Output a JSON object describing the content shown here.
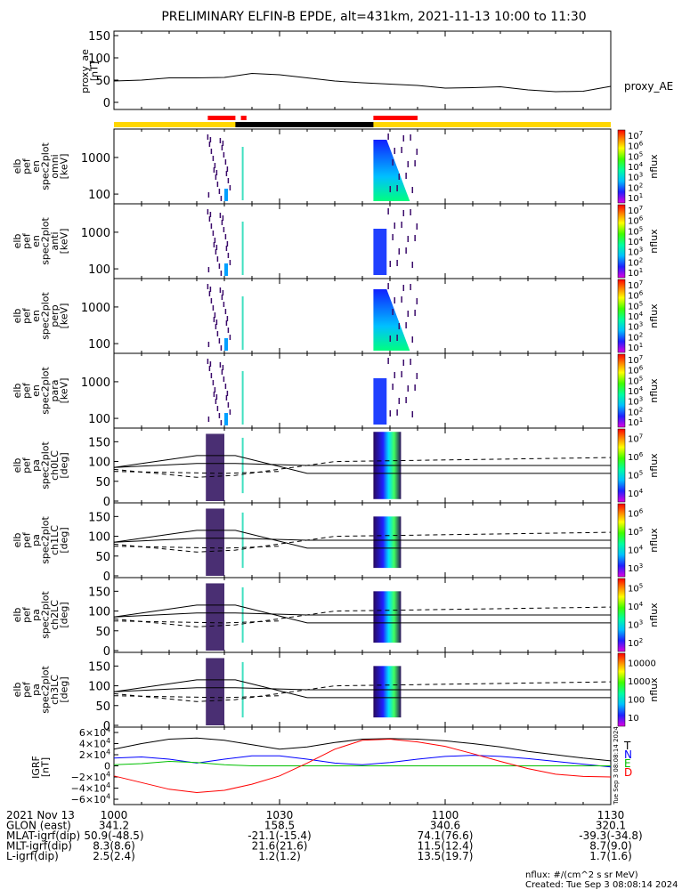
{
  "title": "PRELIMINARY ELFIN-B EPDE, alt=431km, 2021-11-13 10:00 to 11:30",
  "colors": {
    "bar_yellow": "#ffd700",
    "bar_black": "#000000",
    "bar_red": "#ff0000",
    "line_black": "#000000",
    "line_blue": "#0000ff",
    "line_green": "#00c000",
    "line_red": "#ff0000"
  },
  "status_bar": {
    "red_segments": [
      [
        "10:17",
        "10:22"
      ],
      [
        "10:23",
        "10:24"
      ],
      [
        "10:47",
        "10:55"
      ]
    ],
    "black_segments": [
      [
        "10:22",
        "10:47"
      ]
    ]
  },
  "proxy_ae": {
    "ylabel": "proxy_ae [nT]",
    "legend": "proxy_AE",
    "yticks": [
      "150",
      "100",
      "50",
      "0"
    ]
  },
  "spec_panels": [
    {
      "id": "omni",
      "ylabel_lines": [
        "elb",
        "pef",
        "en",
        "spec2plot",
        "omni",
        "[keV]"
      ],
      "yticks": [
        "1000",
        "100"
      ],
      "ztitle": "nflux",
      "zticks": [
        "10^7",
        "10^6",
        "10^5",
        "10^4",
        "10^3",
        "10^2",
        "10^1"
      ]
    },
    {
      "id": "anti",
      "ylabel_lines": [
        "elb",
        "pef",
        "en",
        "spec2plot",
        "anti",
        "[keV]"
      ],
      "yticks": [
        "1000",
        "100"
      ],
      "ztitle": "nflux",
      "zticks": [
        "10^7",
        "10^6",
        "10^5",
        "10^4",
        "10^3",
        "10^2",
        "10^1"
      ]
    },
    {
      "id": "perp",
      "ylabel_lines": [
        "elb",
        "pef",
        "en",
        "spec2plot",
        "perp",
        "[keV]"
      ],
      "yticks": [
        "1000",
        "100"
      ],
      "ztitle": "nflux",
      "zticks": [
        "10^7",
        "10^6",
        "10^5",
        "10^4",
        "10^3",
        "10^2",
        "10^1"
      ]
    },
    {
      "id": "para",
      "ylabel_lines": [
        "elb",
        "pef",
        "en",
        "spec2plot",
        "para",
        "[keV]"
      ],
      "yticks": [
        "1000",
        "100"
      ],
      "ztitle": "nflux",
      "zticks": [
        "10^7",
        "10^6",
        "10^5",
        "10^4",
        "10^3",
        "10^2",
        "10^1"
      ]
    }
  ],
  "pa_panels": [
    {
      "id": "ch0LC",
      "ylabel_lines": [
        "elb",
        "pef",
        "pa",
        "spec2plot",
        "ch0LC",
        "[deg]"
      ],
      "yticks": [
        "150",
        "100",
        "50",
        "0"
      ],
      "ztitle": "nflux",
      "zticks": [
        "10^7",
        "10^6",
        "10^5",
        "10^4"
      ]
    },
    {
      "id": "ch1LC",
      "ylabel_lines": [
        "elb",
        "pef",
        "pa",
        "spec2plot",
        "ch1LC",
        "[deg]"
      ],
      "yticks": [
        "150",
        "100",
        "50",
        "0"
      ],
      "ztitle": "nflux",
      "zticks": [
        "10^6",
        "10^5",
        "10^4",
        "10^3"
      ]
    },
    {
      "id": "ch2LC",
      "ylabel_lines": [
        "elb",
        "pef",
        "pa",
        "spec2plot",
        "ch2LC",
        "[deg]"
      ],
      "yticks": [
        "150",
        "100",
        "50",
        "0"
      ],
      "ztitle": "nflux",
      "zticks": [
        "10^5",
        "10^4",
        "10^3",
        "10^2"
      ]
    },
    {
      "id": "ch3LC",
      "ylabel_lines": [
        "elb",
        "pef",
        "pa",
        "spec2plot",
        "ch3LC",
        "[deg]"
      ],
      "yticks": [
        "150",
        "100",
        "50",
        "0"
      ],
      "ztitle": "nflux",
      "zticks": [
        "10000",
        "1000",
        "100",
        "10"
      ]
    }
  ],
  "igrf": {
    "ylabel": "IGRF [nT]",
    "yticks": [
      "6×10^4",
      "4×10^4",
      "2×10^4",
      "0",
      "−2×10^4",
      "−4×10^4",
      "−6×10^4"
    ],
    "legend": [
      "T",
      "N",
      "E",
      "D"
    ],
    "stamp": "Tue Sep  3 08:08:14 2024"
  },
  "time_axis": {
    "tick_labels": [
      "1000",
      "1030",
      "1100",
      "1130"
    ]
  },
  "annotation_rows": [
    {
      "label": "2021 Nov 13",
      "values": [
        "1000",
        "1030",
        "1100",
        "1130"
      ]
    },
    {
      "label": "GLON (east)",
      "values": [
        "341.2",
        "158.5",
        "340.6",
        "320.1"
      ]
    },
    {
      "label": "MLAT-igrf(dip)",
      "values": [
        "50.9(-48.5)",
        "-21.1(-15.4)",
        "74.1(76.6)",
        "-39.3(-34.8)"
      ]
    },
    {
      "label": "MLT-igrf(dip)",
      "values": [
        "8.3(8.6)",
        "21.6(21.6)",
        "11.5(12.4)",
        "8.7(9.0)"
      ]
    },
    {
      "label": "L-igrf(dip)",
      "values": [
        "2.5(2.4)",
        "1.2(1.2)",
        "13.5(19.7)",
        "1.7(1.6)"
      ]
    }
  ],
  "footer": {
    "units": "nflux: #/(cm^2 s sr MeV)",
    "created": "Created: Tue Sep  3 08:08:14 2024"
  },
  "chart_data": {
    "type": "line",
    "title": "PRELIMINARY ELFIN-B EPDE, alt=431km, 2021-11-13 10:00 to 11:30",
    "xlabel": "",
    "x_range": [
      "10:00",
      "11:30"
    ],
    "proxy_ae": {
      "ylabel": "proxy_ae [nT]",
      "ylim": [
        0,
        160
      ],
      "x": [
        "10:00",
        "10:05",
        "10:10",
        "10:15",
        "10:20",
        "10:25",
        "10:30",
        "10:35",
        "10:40",
        "10:45",
        "10:50",
        "10:55",
        "11:00",
        "11:05",
        "11:10",
        "11:15",
        "11:20",
        "11:25",
        "11:30"
      ],
      "values": [
        48,
        50,
        55,
        55,
        56,
        65,
        62,
        55,
        48,
        44,
        41,
        38,
        32,
        33,
        35,
        28,
        24,
        25,
        36
      ]
    },
    "igrf": {
      "ylabel": "IGRF [nT]",
      "ylim": [
        -60000,
        60000
      ],
      "x": [
        "10:00",
        "10:05",
        "10:10",
        "10:15",
        "10:20",
        "10:25",
        "10:30",
        "10:35",
        "10:40",
        "10:45",
        "10:50",
        "10:55",
        "11:00",
        "11:05",
        "11:10",
        "11:15",
        "11:20",
        "11:25",
        "11:30"
      ],
      "series": [
        {
          "name": "T",
          "values": [
            30000,
            40000,
            48000,
            50000,
            46000,
            38000,
            30000,
            34000,
            42000,
            48000,
            49000,
            48000,
            45000,
            40000,
            34000,
            26000,
            20000,
            14000,
            9000
          ]
        },
        {
          "name": "N",
          "values": [
            14000,
            16000,
            12000,
            5000,
            12000,
            18000,
            18000,
            12000,
            5000,
            2000,
            6000,
            12000,
            17000,
            19000,
            17000,
            13000,
            8000,
            3000,
            -2000
          ]
        },
        {
          "name": "E",
          "values": [
            2000,
            4000,
            8000,
            6000,
            2000,
            0,
            0,
            0,
            0,
            0,
            0,
            0,
            0,
            0,
            0,
            0,
            0,
            0,
            0
          ]
        },
        {
          "name": "D",
          "values": [
            -18000,
            -30000,
            -42000,
            -48000,
            -44000,
            -33000,
            -18000,
            5000,
            30000,
            46000,
            48000,
            43000,
            35000,
            22000,
            8000,
            -5000,
            -15000,
            -19000,
            -20000
          ]
        }
      ]
    }
  }
}
